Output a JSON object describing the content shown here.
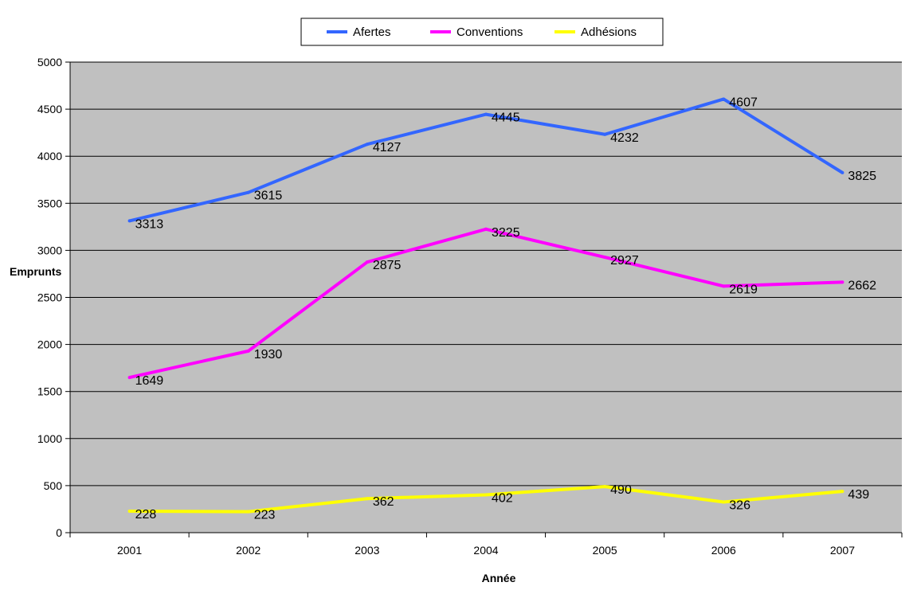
{
  "chart_data": {
    "type": "line",
    "title": "",
    "xlabel": "Année",
    "ylabel": "Emprunts",
    "categories": [
      "2001",
      "2002",
      "2003",
      "2004",
      "2005",
      "2006",
      "2007"
    ],
    "ylim": [
      0,
      5000
    ],
    "yticks": [
      "0",
      "500",
      "1000",
      "1500",
      "2000",
      "2500",
      "3000",
      "3500",
      "4000",
      "4500",
      "5000"
    ],
    "grid": true,
    "legend_position": "top",
    "plot_background": "#c0c0c0",
    "series": [
      {
        "name": "Afertes",
        "color": "#3366ff",
        "values": [
          3313,
          3615,
          4127,
          4445,
          4232,
          4607,
          3825
        ],
        "labels": [
          "3313",
          "3615",
          "4127",
          "4445",
          "4232",
          "4607",
          "3825"
        ]
      },
      {
        "name": "Conventions",
        "color": "#ff00ff",
        "values": [
          1649,
          1930,
          2875,
          3225,
          2927,
          2619,
          2662
        ],
        "labels": [
          "1649",
          "1930",
          "2875",
          "3225",
          "2927",
          "2619",
          "2662"
        ]
      },
      {
        "name": "Adhésions",
        "color": "#ffff00",
        "values": [
          228,
          223,
          362,
          402,
          490,
          326,
          439
        ],
        "labels": [
          "228",
          "223",
          "362",
          "402",
          "490",
          "326",
          "439"
        ]
      }
    ]
  }
}
